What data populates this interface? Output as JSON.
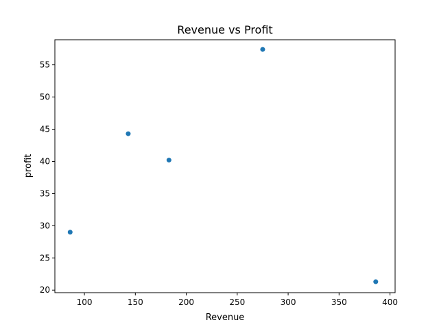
{
  "chart_data": {
    "type": "scatter",
    "title": "Revenue vs Profit",
    "xlabel": "Revenue",
    "ylabel": "profit",
    "xlim": [
      71,
      405
    ],
    "ylim": [
      19.6,
      58.9
    ],
    "x_ticks": [
      100,
      150,
      200,
      250,
      300,
      350,
      400
    ],
    "y_ticks": [
      20,
      25,
      30,
      35,
      40,
      45,
      50,
      55
    ],
    "grid": false,
    "point_color": "#1f77b4",
    "points": [
      {
        "x": 86,
        "y": 29.0
      },
      {
        "x": 143,
        "y": 44.3
      },
      {
        "x": 183,
        "y": 40.2
      },
      {
        "x": 275,
        "y": 57.4
      },
      {
        "x": 386,
        "y": 21.3
      }
    ]
  }
}
